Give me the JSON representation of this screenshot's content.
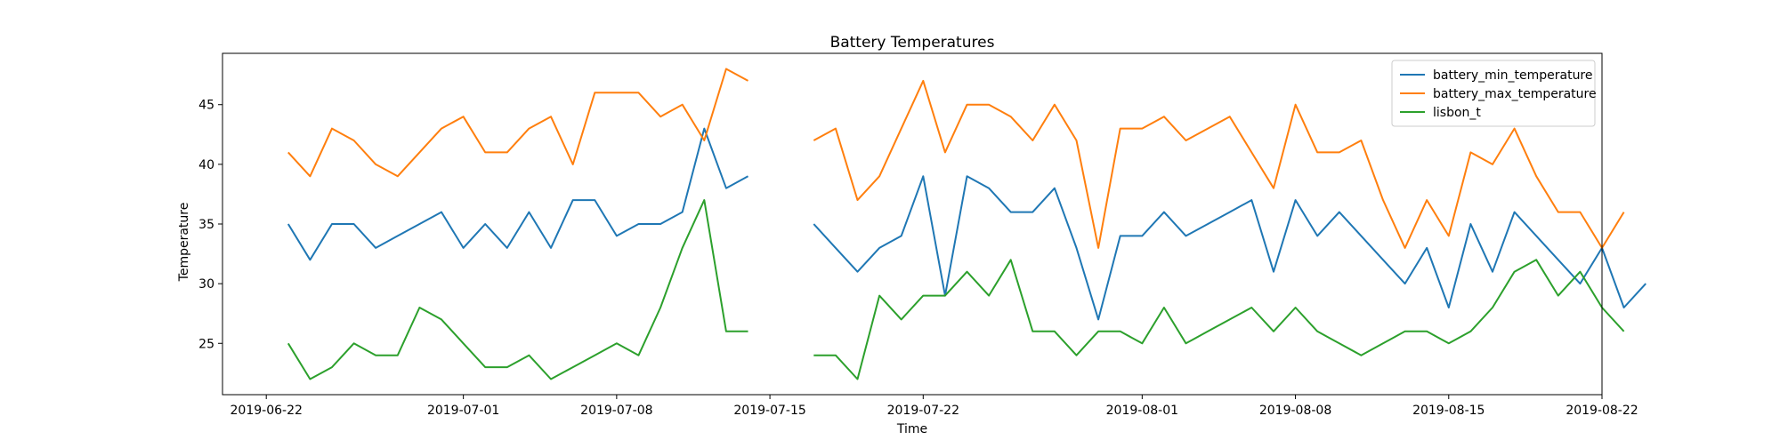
{
  "chart_data": {
    "type": "line",
    "title": "Battery Temperatures",
    "xlabel": "Time",
    "ylabel": "Temperature",
    "x_axis_type": "date",
    "xlim": [
      "2019-06-20",
      "2019-08-22"
    ],
    "ylim": [
      20.7,
      49.3
    ],
    "x_ticks": [
      "2019-06-22",
      "2019-07-01",
      "2019-07-08",
      "2019-07-15",
      "2019-07-22",
      "2019-08-01",
      "2019-08-08",
      "2019-08-15",
      "2019-08-22"
    ],
    "y_ticks": [
      25,
      30,
      35,
      40,
      45
    ],
    "grid": false,
    "legend_position": "top-right",
    "series": [
      {
        "name": "battery_min_temperature",
        "color": "#1f77b4",
        "points": [
          [
            "2019-06-23",
            35
          ],
          [
            "2019-06-24",
            32
          ],
          [
            "2019-06-25",
            35
          ],
          [
            "2019-06-26",
            35
          ],
          [
            "2019-06-27",
            33
          ],
          [
            "2019-06-28",
            34
          ],
          [
            "2019-06-29",
            35
          ],
          [
            "2019-06-30",
            36
          ],
          [
            "2019-07-01",
            33
          ],
          [
            "2019-07-02",
            35
          ],
          [
            "2019-07-03",
            33
          ],
          [
            "2019-07-04",
            36
          ],
          [
            "2019-07-05",
            33
          ],
          [
            "2019-07-06",
            37
          ],
          [
            "2019-07-07",
            37
          ],
          [
            "2019-07-08",
            34
          ],
          [
            "2019-07-09",
            35
          ],
          [
            "2019-07-10",
            35
          ],
          [
            "2019-07-11",
            36
          ],
          [
            "2019-07-12",
            43
          ],
          [
            "2019-07-13",
            38
          ],
          [
            "2019-07-14",
            39
          ],
          [
            "2019-07-17",
            35
          ],
          [
            "2019-07-18",
            33
          ],
          [
            "2019-07-19",
            31
          ],
          [
            "2019-07-20",
            33
          ],
          [
            "2019-07-21",
            34
          ],
          [
            "2019-07-22",
            39
          ],
          [
            "2019-07-23",
            29
          ],
          [
            "2019-07-24",
            39
          ],
          [
            "2019-07-25",
            38
          ],
          [
            "2019-07-26",
            36
          ],
          [
            "2019-07-27",
            36
          ],
          [
            "2019-07-28",
            38
          ],
          [
            "2019-07-29",
            33
          ],
          [
            "2019-07-30",
            27
          ],
          [
            "2019-07-31",
            34
          ],
          [
            "2019-08-01",
            34
          ],
          [
            "2019-08-02",
            36
          ],
          [
            "2019-08-03",
            34
          ],
          [
            "2019-08-04",
            35
          ],
          [
            "2019-08-05",
            36
          ],
          [
            "2019-08-06",
            37
          ],
          [
            "2019-08-07",
            31
          ],
          [
            "2019-08-08",
            37
          ],
          [
            "2019-08-09",
            34
          ],
          [
            "2019-08-10",
            36
          ],
          [
            "2019-08-11",
            34
          ],
          [
            "2019-08-12",
            32
          ],
          [
            "2019-08-13",
            30
          ],
          [
            "2019-08-14",
            33
          ],
          [
            "2019-08-15",
            28
          ],
          [
            "2019-08-16",
            35
          ],
          [
            "2019-08-17",
            31
          ],
          [
            "2019-08-18",
            36
          ],
          [
            "2019-08-19",
            34
          ],
          [
            "2019-08-20",
            32
          ],
          [
            "2019-08-21",
            30
          ],
          [
            "2019-08-22",
            33
          ],
          [
            "2019-08-23",
            28
          ],
          [
            "2019-08-24",
            30
          ]
        ]
      },
      {
        "name": "battery_max_temperature",
        "color": "#ff7f0e",
        "points": [
          [
            "2019-06-23",
            41
          ],
          [
            "2019-06-24",
            39
          ],
          [
            "2019-06-25",
            43
          ],
          [
            "2019-06-26",
            42
          ],
          [
            "2019-06-27",
            40
          ],
          [
            "2019-06-28",
            39
          ],
          [
            "2019-06-29",
            41
          ],
          [
            "2019-06-30",
            43
          ],
          [
            "2019-07-01",
            44
          ],
          [
            "2019-07-02",
            41
          ],
          [
            "2019-07-03",
            41
          ],
          [
            "2019-07-04",
            43
          ],
          [
            "2019-07-05",
            44
          ],
          [
            "2019-07-06",
            40
          ],
          [
            "2019-07-07",
            46
          ],
          [
            "2019-07-08",
            46
          ],
          [
            "2019-07-09",
            46
          ],
          [
            "2019-07-10",
            44
          ],
          [
            "2019-07-11",
            45
          ],
          [
            "2019-07-12",
            42
          ],
          [
            "2019-07-13",
            48
          ],
          [
            "2019-07-14",
            47
          ],
          [
            "2019-07-17",
            42
          ],
          [
            "2019-07-18",
            43
          ],
          [
            "2019-07-19",
            37
          ],
          [
            "2019-07-20",
            39
          ],
          [
            "2019-07-21",
            43
          ],
          [
            "2019-07-22",
            47
          ],
          [
            "2019-07-23",
            41
          ],
          [
            "2019-07-24",
            45
          ],
          [
            "2019-07-25",
            45
          ],
          [
            "2019-07-26",
            44
          ],
          [
            "2019-07-27",
            42
          ],
          [
            "2019-07-28",
            45
          ],
          [
            "2019-07-29",
            42
          ],
          [
            "2019-07-30",
            33
          ],
          [
            "2019-07-31",
            43
          ],
          [
            "2019-08-01",
            43
          ],
          [
            "2019-08-02",
            44
          ],
          [
            "2019-08-03",
            42
          ],
          [
            "2019-08-04",
            43
          ],
          [
            "2019-08-05",
            44
          ],
          [
            "2019-08-06",
            41
          ],
          [
            "2019-08-07",
            38
          ],
          [
            "2019-08-08",
            45
          ],
          [
            "2019-08-09",
            41
          ],
          [
            "2019-08-10",
            41
          ],
          [
            "2019-08-11",
            42
          ],
          [
            "2019-08-12",
            37
          ],
          [
            "2019-08-13",
            33
          ],
          [
            "2019-08-14",
            37
          ],
          [
            "2019-08-15",
            34
          ],
          [
            "2019-08-16",
            41
          ],
          [
            "2019-08-17",
            40
          ],
          [
            "2019-08-18",
            43
          ],
          [
            "2019-08-19",
            39
          ],
          [
            "2019-08-20",
            36
          ],
          [
            "2019-08-21",
            36
          ],
          [
            "2019-08-22",
            33
          ],
          [
            "2019-08-23",
            36
          ]
        ]
      },
      {
        "name": "lisbon_t",
        "color": "#2ca02c",
        "points": [
          [
            "2019-06-23",
            25
          ],
          [
            "2019-06-24",
            22
          ],
          [
            "2019-06-25",
            23
          ],
          [
            "2019-06-26",
            25
          ],
          [
            "2019-06-27",
            24
          ],
          [
            "2019-06-28",
            24
          ],
          [
            "2019-06-29",
            28
          ],
          [
            "2019-06-30",
            27
          ],
          [
            "2019-07-01",
            25
          ],
          [
            "2019-07-02",
            23
          ],
          [
            "2019-07-03",
            23
          ],
          [
            "2019-07-04",
            24
          ],
          [
            "2019-07-05",
            22
          ],
          [
            "2019-07-06",
            23
          ],
          [
            "2019-07-07",
            24
          ],
          [
            "2019-07-08",
            25
          ],
          [
            "2019-07-09",
            24
          ],
          [
            "2019-07-10",
            28
          ],
          [
            "2019-07-11",
            33
          ],
          [
            "2019-07-12",
            37
          ],
          [
            "2019-07-13",
            26
          ],
          [
            "2019-07-14",
            26
          ],
          [
            "2019-07-17",
            24
          ],
          [
            "2019-07-18",
            24
          ],
          [
            "2019-07-19",
            22
          ],
          [
            "2019-07-20",
            29
          ],
          [
            "2019-07-21",
            27
          ],
          [
            "2019-07-22",
            29
          ],
          [
            "2019-07-23",
            29
          ],
          [
            "2019-07-24",
            31
          ],
          [
            "2019-07-25",
            29
          ],
          [
            "2019-07-26",
            32
          ],
          [
            "2019-07-27",
            26
          ],
          [
            "2019-07-28",
            26
          ],
          [
            "2019-07-29",
            24
          ],
          [
            "2019-07-30",
            26
          ],
          [
            "2019-07-31",
            26
          ],
          [
            "2019-08-01",
            25
          ],
          [
            "2019-08-02",
            28
          ],
          [
            "2019-08-03",
            25
          ],
          [
            "2019-08-04",
            26
          ],
          [
            "2019-08-05",
            27
          ],
          [
            "2019-08-06",
            28
          ],
          [
            "2019-08-07",
            26
          ],
          [
            "2019-08-08",
            28
          ],
          [
            "2019-08-09",
            26
          ],
          [
            "2019-08-10",
            25
          ],
          [
            "2019-08-11",
            24
          ],
          [
            "2019-08-12",
            25
          ],
          [
            "2019-08-13",
            26
          ],
          [
            "2019-08-14",
            26
          ],
          [
            "2019-08-15",
            25
          ],
          [
            "2019-08-16",
            26
          ],
          [
            "2019-08-17",
            28
          ],
          [
            "2019-08-18",
            31
          ],
          [
            "2019-08-19",
            32
          ],
          [
            "2019-08-20",
            29
          ],
          [
            "2019-08-21",
            31
          ],
          [
            "2019-08-22",
            28
          ],
          [
            "2019-08-23",
            26
          ]
        ]
      }
    ]
  }
}
